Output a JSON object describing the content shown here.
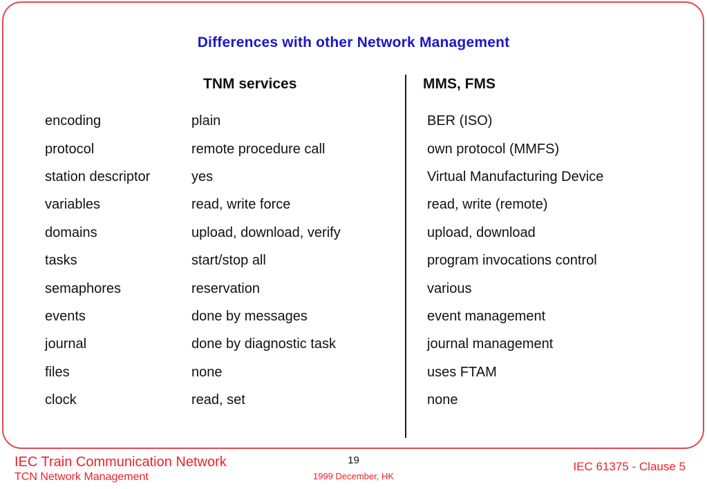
{
  "title": "Differences with other Network Management",
  "table": {
    "col1_header": "TNM services",
    "col2_header": "MMS, FMS",
    "rows": [
      {
        "label": "encoding",
        "tnm": "plain",
        "mms": "BER (ISO)"
      },
      {
        "label": "protocol",
        "tnm": "remote procedure call",
        "mms": "own protocol (MMFS)"
      },
      {
        "label": "station descriptor",
        "tnm": "yes",
        "mms": "Virtual Manufacturing Device"
      },
      {
        "label": "variables",
        "tnm": "read, write force",
        "mms": "read, write (remote)"
      },
      {
        "label": "domains",
        "tnm": "upload, download, verify",
        "mms": "upload, download"
      },
      {
        "label": "tasks",
        "tnm": "start/stop all",
        "mms": "program invocations control"
      },
      {
        "label": "semaphores",
        "tnm": "reservation",
        "mms": "various"
      },
      {
        "label": "events",
        "tnm": "done by messages",
        "mms": "event management"
      },
      {
        "label": "journal",
        "tnm": "done by diagnostic task",
        "mms": "journal management"
      },
      {
        "label": "files",
        "tnm": "none",
        "mms": "uses FTAM"
      },
      {
        "label": "clock",
        "tnm": "read, set",
        "mms": "none"
      }
    ]
  },
  "footer": {
    "left_line1": "IEC Train Communication Network",
    "left_line2": "TCN Network Management",
    "center_page": "19",
    "center_date": "1999 December, HK",
    "right": "IEC 61375 - Clause 5"
  },
  "colors": {
    "title_blue": "#1c16c8",
    "accent_red": "#ee2128",
    "border_red": "#e0474e",
    "text_black": "#111111"
  }
}
